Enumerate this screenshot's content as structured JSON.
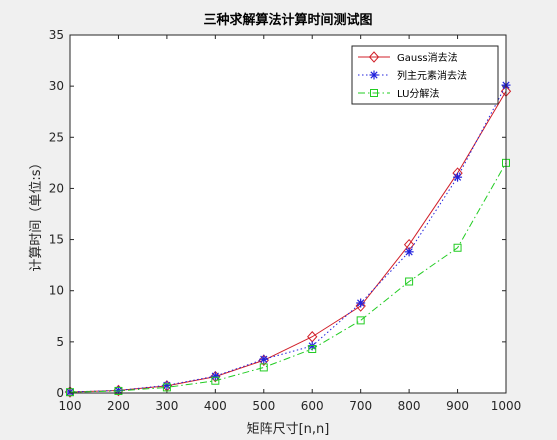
{
  "chart_data": {
    "type": "line",
    "title": "三种求解算法计算时间测试图",
    "xlabel": "矩阵尺寸[n,n]",
    "ylabel": "计算时间（单位:s）",
    "x": [
      100,
      200,
      300,
      400,
      500,
      600,
      700,
      800,
      900,
      1000
    ],
    "xlim": [
      100,
      1000
    ],
    "ylim": [
      0,
      35
    ],
    "xticks": [
      100,
      200,
      300,
      400,
      500,
      600,
      700,
      800,
      900,
      1000
    ],
    "yticks": [
      0,
      5,
      10,
      15,
      20,
      25,
      30,
      35
    ],
    "grid": false,
    "legend_position": "top-right",
    "series": [
      {
        "name": "Gauss消去法",
        "values": [
          0.1,
          0.25,
          0.7,
          1.6,
          3.2,
          5.5,
          8.5,
          14.5,
          21.5,
          29.5
        ],
        "color": "#d11f29",
        "line_style": "solid",
        "marker": "diamond"
      },
      {
        "name": "列主元素消去法",
        "values": [
          0.1,
          0.25,
          0.75,
          1.65,
          3.3,
          4.6,
          8.8,
          13.8,
          21.1,
          30.1
        ],
        "color": "#2222dd",
        "line_style": "dotted",
        "marker": "asterisk"
      },
      {
        "name": "LU分解法",
        "values": [
          0.08,
          0.2,
          0.55,
          1.2,
          2.5,
          4.3,
          7.1,
          10.9,
          14.2,
          22.5
        ],
        "color": "#22cc22",
        "line_style": "dashdot",
        "marker": "square"
      }
    ]
  }
}
